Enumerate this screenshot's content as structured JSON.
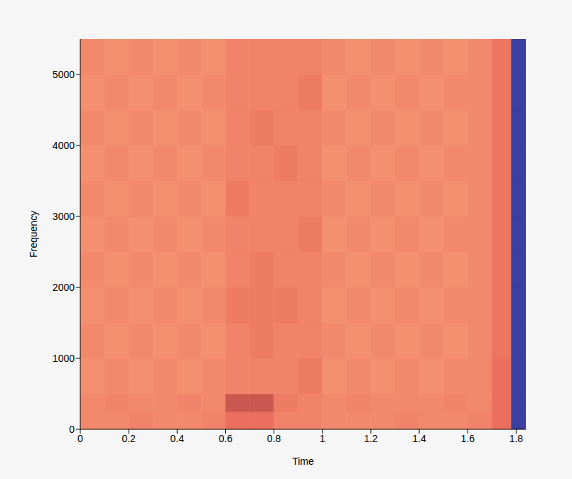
{
  "chart_data": {
    "type": "heatmap",
    "xlabel": "Time",
    "ylabel": "Frequency",
    "xlim": [
      0,
      1.84
    ],
    "ylim": [
      0,
      5500
    ],
    "xticks": [
      0,
      0.2,
      0.4,
      0.6,
      0.8,
      1,
      1.2,
      1.4,
      1.6,
      1.8
    ],
    "yticks": [
      0,
      1000,
      2000,
      3000,
      4000,
      5000
    ],
    "grid": false,
    "heatmap": {
      "x_edges": [
        0,
        0.1,
        0.2,
        0.3,
        0.4,
        0.5,
        0.6,
        0.7,
        0.8,
        0.9,
        1,
        1.1,
        1.2,
        1.3,
        1.4,
        1.5,
        1.6,
        1.7,
        1.78,
        1.84
      ],
      "y_edges": [
        0,
        250,
        500,
        1000,
        1500,
        2000,
        2500,
        3000,
        3500,
        4000,
        4500,
        5000,
        5500
      ],
      "cells": [
        [
          -60,
          -60,
          -61,
          -60,
          -60,
          -61,
          -64,
          -64,
          -61,
          -61,
          -60,
          -60,
          -60,
          -61,
          -60,
          -60,
          -61,
          -64,
          -120
        ],
        [
          -60,
          -61,
          -60,
          -60,
          -61,
          -60,
          -70,
          -70,
          -62,
          -61,
          -60,
          -61,
          -60,
          -60,
          -60,
          -61,
          -60,
          -64,
          -120
        ],
        [
          -59,
          -60,
          -59,
          -60,
          -59,
          -60,
          -61,
          -61,
          -61,
          -62,
          -59,
          -60,
          -59,
          -60,
          -59,
          -60,
          -60,
          -64,
          -120
        ],
        [
          -60,
          -59,
          -60,
          -59,
          -60,
          -59,
          -61,
          -62,
          -61,
          -61,
          -60,
          -59,
          -60,
          -59,
          -60,
          -59,
          -60,
          -63,
          -120
        ],
        [
          -59,
          -60,
          -59,
          -60,
          -59,
          -60,
          -62,
          -62,
          -62,
          -61,
          -59,
          -60,
          -59,
          -60,
          -59,
          -60,
          -60,
          -63,
          -120
        ],
        [
          -60,
          -59,
          -60,
          -59,
          -60,
          -59,
          -61,
          -62,
          -61,
          -61,
          -60,
          -59,
          -60,
          -59,
          -60,
          -59,
          -60,
          -63,
          -120
        ],
        [
          -59,
          -60,
          -59,
          -60,
          -59,
          -60,
          -61,
          -61,
          -61,
          -62,
          -59,
          -60,
          -59,
          -60,
          -59,
          -60,
          -60,
          -63,
          -120
        ],
        [
          -60,
          -59,
          -60,
          -59,
          -60,
          -59,
          -62,
          -61,
          -61,
          -61,
          -60,
          -59,
          -60,
          -59,
          -60,
          -59,
          -60,
          -63,
          -120
        ],
        [
          -59,
          -60,
          -59,
          -60,
          -59,
          -60,
          -61,
          -61,
          -62,
          -61,
          -59,
          -60,
          -59,
          -60,
          -59,
          -60,
          -60,
          -63,
          -120
        ],
        [
          -60,
          -59,
          -60,
          -59,
          -60,
          -59,
          -61,
          -62,
          -61,
          -61,
          -60,
          -59,
          -60,
          -59,
          -60,
          -59,
          -60,
          -63,
          -120
        ],
        [
          -59,
          -60,
          -59,
          -60,
          -59,
          -60,
          -61,
          -61,
          -61,
          -62,
          -59,
          -60,
          -59,
          -60,
          -59,
          -60,
          -60,
          -63,
          -120
        ],
        [
          -60,
          -59,
          -60,
          -59,
          -60,
          -59,
          -61,
          -61,
          -61,
          -61,
          -60,
          -59,
          -60,
          -59,
          -60,
          -59,
          -60,
          -63,
          -120
        ]
      ]
    }
  }
}
